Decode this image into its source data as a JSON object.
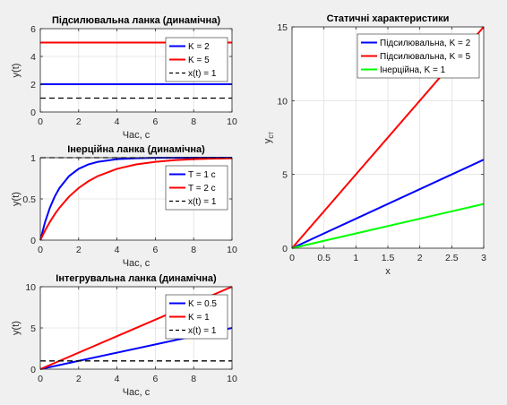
{
  "window": {
    "background": "#f0f0f0"
  },
  "chart_data": [
    {
      "id": "amp",
      "type": "line",
      "title": "Підсилювальна ланка (динамічна)",
      "xlabel": "Час, с",
      "ylabel": "y(t)",
      "xlim": [
        0,
        10
      ],
      "ylim": [
        0,
        6
      ],
      "xticks": [
        0,
        2,
        4,
        6,
        8,
        10
      ],
      "yticks": [
        0,
        2,
        4,
        6
      ],
      "grid": true,
      "legend_position": "top-right",
      "series": [
        {
          "name": "K = 2",
          "color": "#0000ff",
          "style": "solid",
          "x": [
            0,
            10
          ],
          "y": [
            2,
            2
          ]
        },
        {
          "name": "K = 5",
          "color": "#ff0000",
          "style": "solid",
          "x": [
            0,
            10
          ],
          "y": [
            5,
            5
          ]
        },
        {
          "name": "x(t) = 1",
          "color": "#000000",
          "style": "dashed",
          "x": [
            0,
            10
          ],
          "y": [
            1,
            1
          ]
        }
      ]
    },
    {
      "id": "inert",
      "type": "line",
      "title": "Інерційна ланка (динамічна)",
      "xlabel": "Час, с",
      "ylabel": "y(t)",
      "xlim": [
        0,
        10
      ],
      "ylim": [
        0,
        1
      ],
      "xticks": [
        0,
        2,
        4,
        6,
        8,
        10
      ],
      "yticks": [
        0,
        0.5,
        1
      ],
      "grid": true,
      "legend_position": "right",
      "series": [
        {
          "name": "T = 1 с",
          "color": "#0000ff",
          "style": "solid",
          "x": [
            0,
            0.25,
            0.5,
            0.75,
            1,
            1.5,
            2,
            2.5,
            3,
            4,
            5,
            6,
            7,
            8,
            9,
            10
          ],
          "y": [
            0,
            0.221,
            0.393,
            0.528,
            0.632,
            0.777,
            0.865,
            0.918,
            0.95,
            0.982,
            0.993,
            0.998,
            0.999,
            1,
            1,
            1
          ]
        },
        {
          "name": "T = 2 с",
          "color": "#ff0000",
          "style": "solid",
          "x": [
            0,
            0.25,
            0.5,
            0.75,
            1,
            1.5,
            2,
            2.5,
            3,
            4,
            5,
            6,
            7,
            8,
            9,
            10
          ],
          "y": [
            0,
            0.118,
            0.221,
            0.313,
            0.393,
            0.528,
            0.632,
            0.713,
            0.777,
            0.865,
            0.918,
            0.95,
            0.97,
            0.982,
            0.989,
            0.993
          ]
        },
        {
          "name": "x(t) = 1",
          "color": "#000000",
          "style": "dashed",
          "x": [
            0,
            10
          ],
          "y": [
            1,
            1
          ]
        }
      ]
    },
    {
      "id": "integ",
      "type": "line",
      "title": "Інтегрувальна ланка (динамічна)",
      "xlabel": "Час, с",
      "ylabel": "y(t)",
      "xlim": [
        0,
        10
      ],
      "ylim": [
        0,
        10
      ],
      "xticks": [
        0,
        2,
        4,
        6,
        8,
        10
      ],
      "yticks": [
        0,
        5,
        10
      ],
      "grid": true,
      "legend_position": "top-right",
      "series": [
        {
          "name": "K = 0.5",
          "color": "#0000ff",
          "style": "solid",
          "x": [
            0,
            10
          ],
          "y": [
            0,
            5
          ]
        },
        {
          "name": "K = 1",
          "color": "#ff0000",
          "style": "solid",
          "x": [
            0,
            10
          ],
          "y": [
            0,
            10
          ]
        },
        {
          "name": "x(t) = 1",
          "color": "#000000",
          "style": "dashed",
          "x": [
            0,
            10
          ],
          "y": [
            1,
            1
          ]
        }
      ]
    },
    {
      "id": "static",
      "type": "line",
      "title": "Статичні характеристики",
      "xlabel": "x",
      "ylabel": "y",
      "ylabel_sub": "ст",
      "xlim": [
        0,
        3
      ],
      "ylim": [
        0,
        15
      ],
      "xticks": [
        0,
        0.5,
        1,
        1.5,
        2,
        2.5,
        3
      ],
      "yticks": [
        0,
        5,
        10,
        15
      ],
      "grid": true,
      "legend_position": "top-right",
      "series": [
        {
          "name": "Підсилювальна, K = 2",
          "color": "#0000ff",
          "style": "solid",
          "x": [
            0,
            3
          ],
          "y": [
            0,
            6
          ]
        },
        {
          "name": "Підсилювальна, K = 5",
          "color": "#ff0000",
          "style": "solid",
          "x": [
            0,
            3
          ],
          "y": [
            0,
            15
          ]
        },
        {
          "name": "Інерційна, K = 1",
          "color": "#00ff00",
          "style": "solid",
          "x": [
            0,
            3
          ],
          "y": [
            0,
            3
          ]
        }
      ]
    }
  ]
}
